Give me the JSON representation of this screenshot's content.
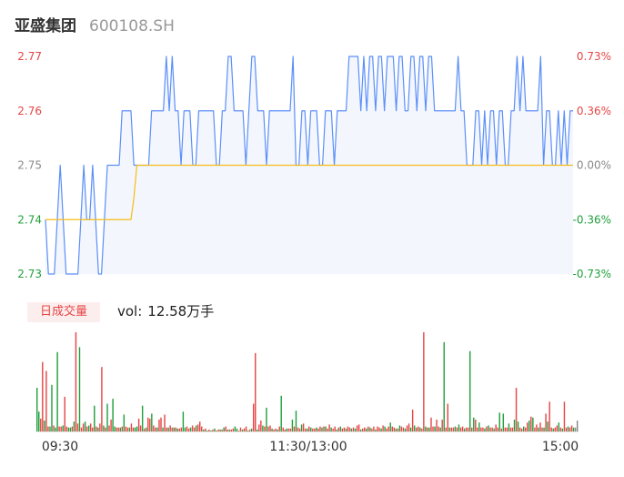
{
  "header": {
    "name": "亚盛集团",
    "code": "600108.SH"
  },
  "volume_badge": "日成交量",
  "volume_label": "vol:",
  "volume_value": "12.58万手",
  "colors": {
    "price": "#5b8ff9",
    "avg": "#f6bd16",
    "up": "#e64545",
    "down": "#21a03c",
    "flat": "#888888",
    "area": "#f3f6fd"
  },
  "chart_data": [
    {
      "type": "line",
      "series": [
        {
          "values": [
            2.74,
            2.73,
            2.73,
            2.73,
            2.74,
            2.75,
            2.74,
            2.73,
            2.73,
            2.73,
            2.73,
            2.73,
            2.74,
            2.75,
            2.74,
            2.74,
            2.75,
            2.74,
            2.73,
            2.73,
            2.74,
            2.75,
            2.75,
            2.75,
            2.75,
            2.75,
            2.76,
            2.76,
            2.76,
            2.76,
            2.75,
            2.75,
            2.75,
            2.75,
            2.75,
            2.75,
            2.76,
            2.76,
            2.76,
            2.76,
            2.76,
            2.77,
            2.76,
            2.77,
            2.76,
            2.76,
            2.75,
            2.76,
            2.76,
            2.76,
            2.75,
            2.75,
            2.76,
            2.76,
            2.76,
            2.76,
            2.76,
            2.76,
            2.75,
            2.75,
            2.76,
            2.76,
            2.77,
            2.77,
            2.76,
            2.76,
            2.76,
            2.76,
            2.75,
            2.76,
            2.77,
            2.77,
            2.76,
            2.76,
            2.76,
            2.75,
            2.76,
            2.76,
            2.76,
            2.76,
            2.76,
            2.76,
            2.76,
            2.76,
            2.77,
            2.75,
            2.75,
            2.76,
            2.76,
            2.75,
            2.76,
            2.76,
            2.76,
            2.75,
            2.75,
            2.76,
            2.76,
            2.76,
            2.75,
            2.76,
            2.76,
            2.76,
            2.76,
            2.77,
            2.77,
            2.77,
            2.77,
            2.76,
            2.77,
            2.76,
            2.77,
            2.77,
            2.76,
            2.77,
            2.77,
            2.76,
            2.77,
            2.77,
            2.77,
            2.76,
            2.77,
            2.77,
            2.76,
            2.76,
            2.77,
            2.77,
            2.76,
            2.77,
            2.77,
            2.76,
            2.77,
            2.77,
            2.76,
            2.76,
            2.76,
            2.76,
            2.76,
            2.76,
            2.76,
            2.76,
            2.77,
            2.76,
            2.76,
            2.75,
            2.75,
            2.75,
            2.76,
            2.76,
            2.75,
            2.76,
            2.75,
            2.76,
            2.76,
            2.75,
            2.76,
            2.76,
            2.75,
            2.75,
            2.76,
            2.76,
            2.77,
            2.76,
            2.77,
            2.76,
            2.76,
            2.76,
            2.76,
            2.76,
            2.77,
            2.75,
            2.76,
            2.76,
            2.75,
            2.75,
            2.76,
            2.75,
            2.76,
            2.75,
            2.76,
            2.76
          ],
          "color": "#5b8ff9"
        },
        {
          "values": [
            2.74,
            2.74,
            2.74,
            2.74,
            2.74,
            2.74,
            2.74,
            2.74,
            2.74,
            2.74,
            2.74,
            2.74,
            2.74,
            2.74,
            2.74,
            2.74,
            2.74,
            2.74,
            2.74,
            2.74,
            2.74,
            2.74,
            2.74,
            2.74,
            2.74,
            2.74,
            2.74,
            2.74,
            2.74,
            2.74,
            2.744,
            2.75
          ],
          "color": "#f6bd16"
        }
      ],
      "preclose": 2.75,
      "y_ticks_left": [
        "2.77",
        "2.76",
        "2.75",
        "2.74",
        "2.73"
      ],
      "y_ticks_right": [
        "0.73%",
        "0.36%",
        "0.00%",
        "-0.36%",
        "-0.73%"
      ],
      "ylim": [
        2.73,
        2.77
      ]
    },
    {
      "type": "bar",
      "x_ticks": [
        "09:30",
        "11:30/13:00",
        "15:00"
      ],
      "values": [
        0.44,
        0.2,
        0.13,
        0.7,
        0.11,
        0.61,
        0.05,
        0.05,
        0.47,
        0.06,
        0.04,
        0.8,
        0.05,
        0.05,
        0.06,
        0.35,
        0.05,
        0.04,
        0.04,
        0.05,
        0.1,
        1.0,
        0.08,
        0.85,
        0.04,
        0.08,
        0.1,
        0.05,
        0.06,
        0.08,
        0.04,
        0.26,
        0.05,
        0.04,
        0.08,
        0.65,
        0.06,
        0.04,
        0.28,
        0.06,
        0.12,
        0.33,
        0.05,
        0.04,
        0.04,
        0.04,
        0.05,
        0.17,
        0.05,
        0.04,
        0.04,
        0.08,
        0.04,
        0.04,
        0.05,
        0.13,
        0.06,
        0.26,
        0.03,
        0.04,
        0.14,
        0.13,
        0.18,
        0.06,
        0.04,
        0.04,
        0.12,
        0.14,
        0.04,
        0.17,
        0.04,
        0.04,
        0.06,
        0.04,
        0.04,
        0.04,
        0.03,
        0.03,
        0.04,
        0.2,
        0.04,
        0.05,
        0.03,
        0.04,
        0.06,
        0.04,
        0.06,
        0.07,
        0.1,
        0.05,
        0.02,
        0.03,
        0.01,
        0.02,
        0.01,
        0.02,
        0.03,
        0.01,
        0.02,
        0.02,
        0.02,
        0.04,
        0.05,
        0.02,
        0.02,
        0.02,
        0.03,
        0.05,
        0.03,
        0.01,
        0.04,
        0.02,
        0.03,
        0.05,
        0.01,
        0.02,
        0.03,
        0.28,
        0.79,
        0.02,
        0.07,
        0.11,
        0.06,
        0.05,
        0.24,
        0.05,
        0.06,
        0.03,
        0.02,
        0.03,
        0.02,
        0.05,
        0.36,
        0.04,
        0.02,
        0.03,
        0.03,
        0.03,
        0.12,
        0.05,
        0.21,
        0.04,
        0.03,
        0.07,
        0.08,
        0.03,
        0.03,
        0.05,
        0.04,
        0.03,
        0.03,
        0.04,
        0.03,
        0.05,
        0.04,
        0.05,
        0.05,
        0.03,
        0.07,
        0.04,
        0.03,
        0.05,
        0.02,
        0.04,
        0.05,
        0.03,
        0.04,
        0.03,
        0.05,
        0.04,
        0.03,
        0.04,
        0.03,
        0.06,
        0.07,
        0.02,
        0.03,
        0.04,
        0.03,
        0.05,
        0.04,
        0.03,
        0.05,
        0.02,
        0.05,
        0.04,
        0.03,
        0.06,
        0.05,
        0.03,
        0.05,
        0.09,
        0.05,
        0.04,
        0.03,
        0.03,
        0.06,
        0.05,
        0.04,
        0.03,
        0.06,
        0.08,
        0.04,
        0.22,
        0.06,
        0.04,
        0.05,
        0.04,
        0.03,
        1.0,
        0.05,
        0.04,
        0.04,
        0.14,
        0.05,
        0.05,
        0.12,
        0.05,
        0.04,
        0.12,
        0.9,
        0.04,
        0.28,
        0.04,
        0.04,
        0.04,
        0.05,
        0.04,
        0.07,
        0.04,
        0.05,
        0.03,
        0.04,
        0.04,
        0.81,
        0.04,
        0.14,
        0.12,
        0.04,
        0.09,
        0.04,
        0.04,
        0.03,
        0.05,
        0.06,
        0.04,
        0.04,
        0.03,
        0.07,
        0.04,
        0.19,
        0.03,
        0.18,
        0.04,
        0.04,
        0.08,
        0.04,
        0.04,
        0.12,
        0.44,
        0.1,
        0.04,
        0.03,
        0.05,
        0.04,
        0.09,
        0.11,
        0.15,
        0.14,
        0.04,
        0.07,
        0.04,
        0.09,
        0.04,
        0.04,
        0.18,
        0.1,
        0.3,
        0.04,
        0.03,
        0.04,
        0.06,
        0.09,
        0.04,
        0.03,
        0.3,
        0.04,
        0.05,
        0.04,
        0.06,
        0.04,
        0.04,
        0.11
      ],
      "colors": [
        "d",
        "d",
        "u",
        "u",
        "d",
        "u",
        "u",
        "d",
        "d",
        "u",
        "d",
        "d",
        "u",
        "u",
        "d",
        "u",
        "u",
        "d",
        "d",
        "u",
        "d",
        "u",
        "u",
        "d",
        "u",
        "u",
        "d",
        "u",
        "d",
        "u",
        "u",
        "d",
        "u",
        "d",
        "u",
        "u",
        "d",
        "u",
        "d",
        "u",
        "u",
        "d",
        "d",
        "u",
        "u",
        "d",
        "u",
        "d",
        "u",
        "u",
        "d",
        "u",
        "u",
        "d",
        "d",
        "u",
        "u",
        "d",
        "u",
        "d",
        "u",
        "u",
        "d",
        "u",
        "u",
        "d",
        "u",
        "u",
        "d",
        "u",
        "u",
        "d",
        "u",
        "u",
        "d",
        "u",
        "d",
        "u",
        "u",
        "d",
        "d",
        "u",
        "u",
        "d",
        "u",
        "u",
        "d",
        "u",
        "u",
        "u",
        "d",
        "u",
        "d",
        "u",
        "d",
        "u",
        "d",
        "u",
        "u",
        "d",
        "u",
        "d",
        "u",
        "u",
        "d",
        "u",
        "u",
        "d",
        "d",
        "u",
        "u",
        "d",
        "u",
        "u",
        "d",
        "u",
        "d",
        "u",
        "u",
        "d",
        "u",
        "u",
        "d",
        "u",
        "d",
        "u",
        "u",
        "d",
        "u",
        "u",
        "d",
        "u",
        "d",
        "u",
        "u",
        "d",
        "u",
        "u",
        "d",
        "u",
        "d",
        "u",
        "u",
        "d",
        "u",
        "u",
        "d",
        "u",
        "d",
        "u",
        "u",
        "d",
        "u",
        "u",
        "d",
        "u",
        "d",
        "u",
        "u",
        "d",
        "u",
        "u",
        "d",
        "u",
        "d",
        "u",
        "u",
        "d",
        "u",
        "u",
        "d",
        "u",
        "d",
        "u",
        "u",
        "d",
        "u",
        "u",
        "d",
        "u",
        "d",
        "u",
        "u",
        "d",
        "u",
        "u",
        "d",
        "u",
        "d",
        "u",
        "u",
        "d",
        "u",
        "u",
        "d",
        "u",
        "d",
        "u",
        "u",
        "d",
        "u",
        "u",
        "d",
        "u",
        "d",
        "u",
        "u",
        "d",
        "u",
        "u",
        "d",
        "u",
        "d",
        "u",
        "u",
        "d",
        "u",
        "u",
        "d",
        "u",
        "d",
        "u",
        "u",
        "d",
        "u",
        "u",
        "d",
        "u",
        "d",
        "u",
        "u",
        "d",
        "u",
        "u",
        "d",
        "u",
        "d",
        "u",
        "u",
        "d",
        "u",
        "u",
        "d",
        "u",
        "d",
        "u",
        "u",
        "d",
        "u",
        "u",
        "d",
        "u",
        "d",
        "u",
        "u",
        "d",
        "u",
        "u",
        "d",
        "u",
        "d",
        "u",
        "u",
        "d",
        "u",
        "u",
        "d",
        "u",
        "d",
        "u",
        "u",
        "d",
        "u",
        "u",
        "d",
        "u",
        "d",
        "u",
        "u",
        "d",
        "u",
        "u",
        "d",
        "u",
        "d",
        "u",
        "u",
        "d",
        "u",
        "u",
        "d"
      ]
    }
  ]
}
